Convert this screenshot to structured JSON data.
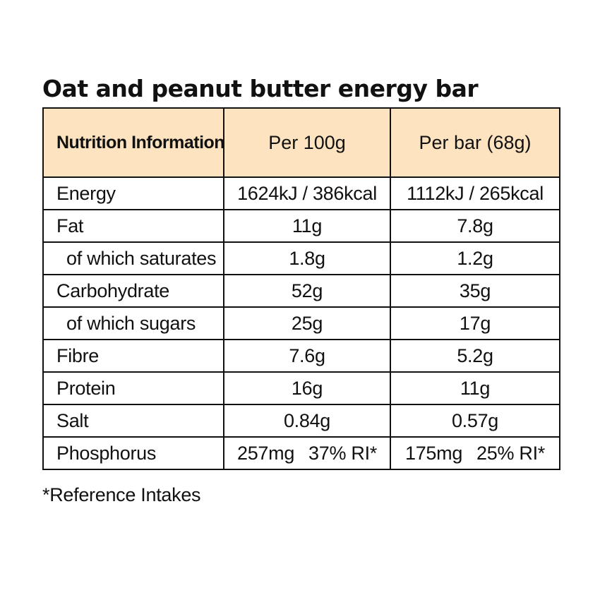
{
  "title": "Oat and peanut butter energy bar",
  "header": {
    "label": "Nutrition Information",
    "col_per100": "Per 100g",
    "col_perbar": "Per bar (68g)"
  },
  "rows": [
    {
      "name": "Energy",
      "per100": "1624kJ / 386kcal",
      "perbar": "1112kJ / 265kcal"
    },
    {
      "name": "Fat",
      "per100": "11g",
      "perbar": "7.8g"
    },
    {
      "name": "of which saturates",
      "per100": "1.8g",
      "perbar": "1.2g"
    },
    {
      "name": "Carbohydrate",
      "per100": "52g",
      "perbar": "35g"
    },
    {
      "name": "of which sugars",
      "per100": "25g",
      "perbar": "17g"
    },
    {
      "name": "Fibre",
      "per100": "7.6g",
      "perbar": "5.2g"
    },
    {
      "name": "Protein",
      "per100": "16g",
      "perbar": "11g"
    },
    {
      "name": "Salt",
      "per100": "0.84g",
      "perbar": "0.57g"
    },
    {
      "name": "Phosphorus",
      "per100": "257mg",
      "per100_ri": "37% RI*",
      "perbar": "175mg",
      "perbar_ri": "25% RI*"
    }
  ],
  "footnote": "*Reference Intakes",
  "colors": {
    "header_bg": "#fde3bf",
    "border": "#111111",
    "text": "#111111"
  }
}
